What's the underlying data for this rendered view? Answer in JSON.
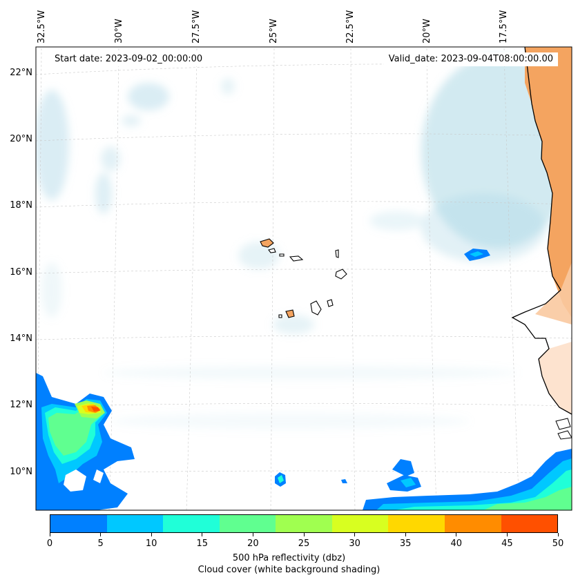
{
  "header": {
    "start_date": "Start date: 2023-09-02_00:00:00",
    "valid_date": "Valid_date: 2023-09-04T08:00:00.00"
  },
  "longitude_labels": [
    "32.5°W",
    "30°W",
    "27.5°W",
    "25°W",
    "22.5°W",
    "20°W",
    "17.5°W"
  ],
  "latitude_labels": [
    "22°N",
    "20°N",
    "18°N",
    "16°N",
    "14°N",
    "12°N",
    "10°N"
  ],
  "colorbar": {
    "ticks": [
      "0",
      "5",
      "10",
      "15",
      "20",
      "25",
      "30",
      "35",
      "40",
      "45",
      "50"
    ],
    "tick_values": [
      0,
      5,
      10,
      15,
      20,
      25,
      30,
      35,
      40,
      45,
      50
    ],
    "colors": [
      "#0080ff",
      "#00c8ff",
      "#20ffd8",
      "#60ff90",
      "#a0ff50",
      "#d8ff20",
      "#ffd800",
      "#ff8c00",
      "#ff5000"
    ],
    "label": "500 hPa reflectivity (dbz)",
    "sublabel": "Cloud cover (white background shading)"
  },
  "colors": {
    "land": "#f4a460",
    "land_light": "#f9c9a0",
    "cloud": "#add8e6",
    "coastline": "#000000"
  }
}
